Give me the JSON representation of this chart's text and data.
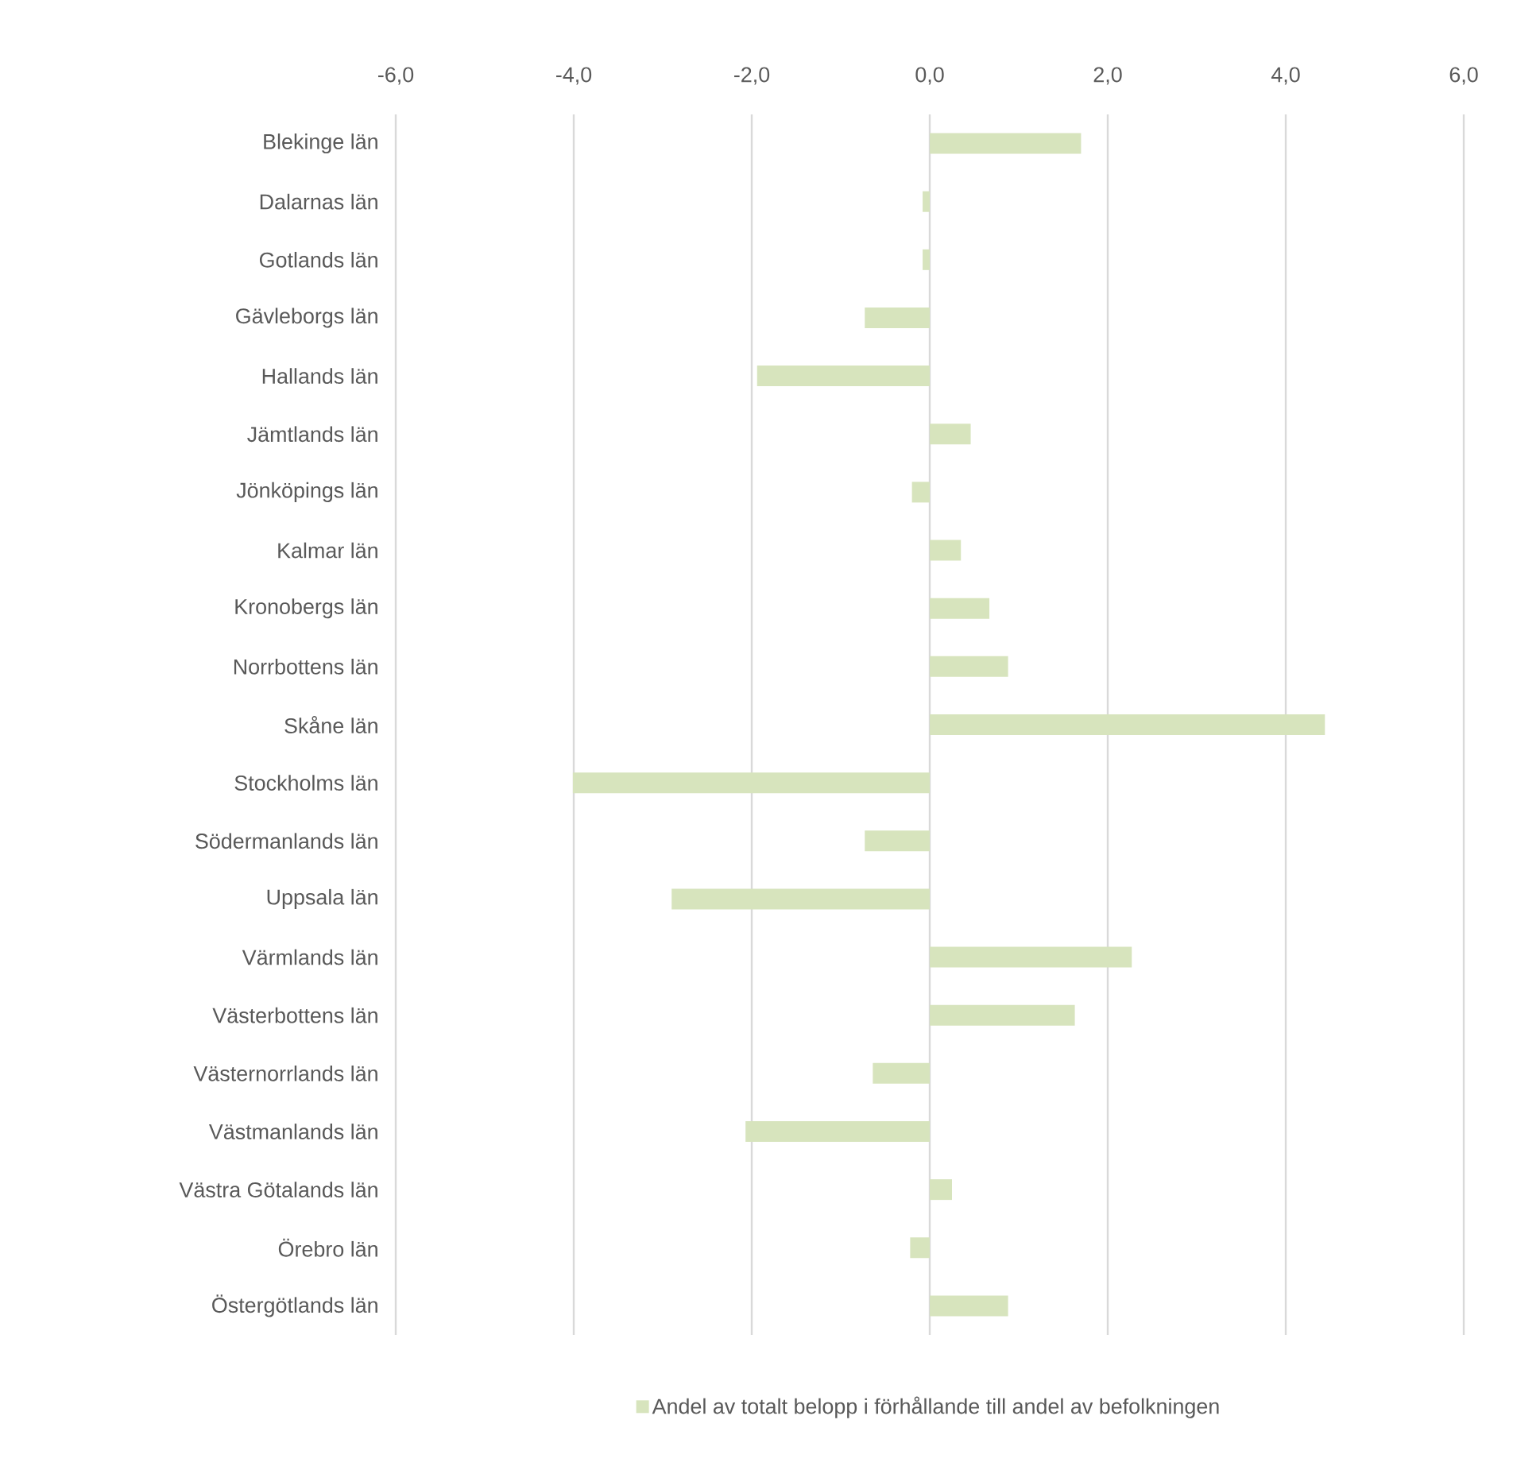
{
  "chart_data": {
    "type": "bar",
    "orientation": "horizontal",
    "categories": [
      "Blekinge län",
      "Dalarnas län",
      "Gotlands län",
      "Gävleborgs län",
      "Hallands län",
      "Jämtlands län",
      "Jönköpings län",
      "Kalmar län",
      "Kronobergs län",
      "Norrbottens län",
      "Skåne län",
      "Stockholms län",
      "Södermanlands län",
      "Uppsala län",
      "Värmlands län",
      "Västerbottens län",
      "Västernorrlands län",
      "Västmanlands län",
      "Västra Götalands län",
      "Örebro län",
      "Östergötlands län"
    ],
    "series": [
      {
        "name": "Andel av totalt belopp i förhållande till andel av befolkningen",
        "color": "#d7e4bd",
        "values": [
          1.7,
          -0.08,
          -0.08,
          -0.73,
          -1.94,
          0.46,
          -0.2,
          0.35,
          0.67,
          0.88,
          4.44,
          -4.01,
          -0.73,
          -2.9,
          2.27,
          1.63,
          -0.64,
          -2.07,
          0.25,
          -0.22,
          0.88
        ]
      }
    ],
    "xlim": [
      -6,
      6
    ],
    "xticks": [
      {
        "value": -6,
        "label": "-6,0"
      },
      {
        "value": -4,
        "label": "-4,0"
      },
      {
        "value": -2,
        "label": "-2,0"
      },
      {
        "value": 0,
        "label": "0,0"
      },
      {
        "value": 2,
        "label": "2,0"
      },
      {
        "value": 4,
        "label": "4,0"
      },
      {
        "value": 6,
        "label": "6,0"
      }
    ],
    "grid": "x",
    "legend": "bottom"
  }
}
